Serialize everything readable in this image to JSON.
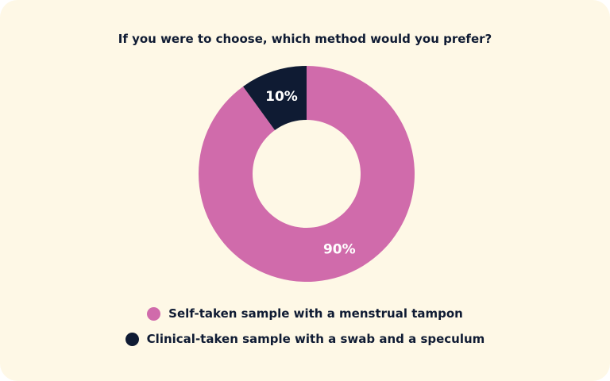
{
  "chart_data": {
    "type": "pie",
    "title": "If you were to choose, which method would you prefer?",
    "donut": true,
    "series": [
      {
        "name": "Self-taken sample with a menstrual tampon",
        "value": 90,
        "label": "90%",
        "color": "#d06bab"
      },
      {
        "name": "Clinical-taken sample with a swab and a speculum",
        "value": 10,
        "label": "10%",
        "color": "#0f1b33"
      }
    ],
    "legend_position": "bottom"
  }
}
